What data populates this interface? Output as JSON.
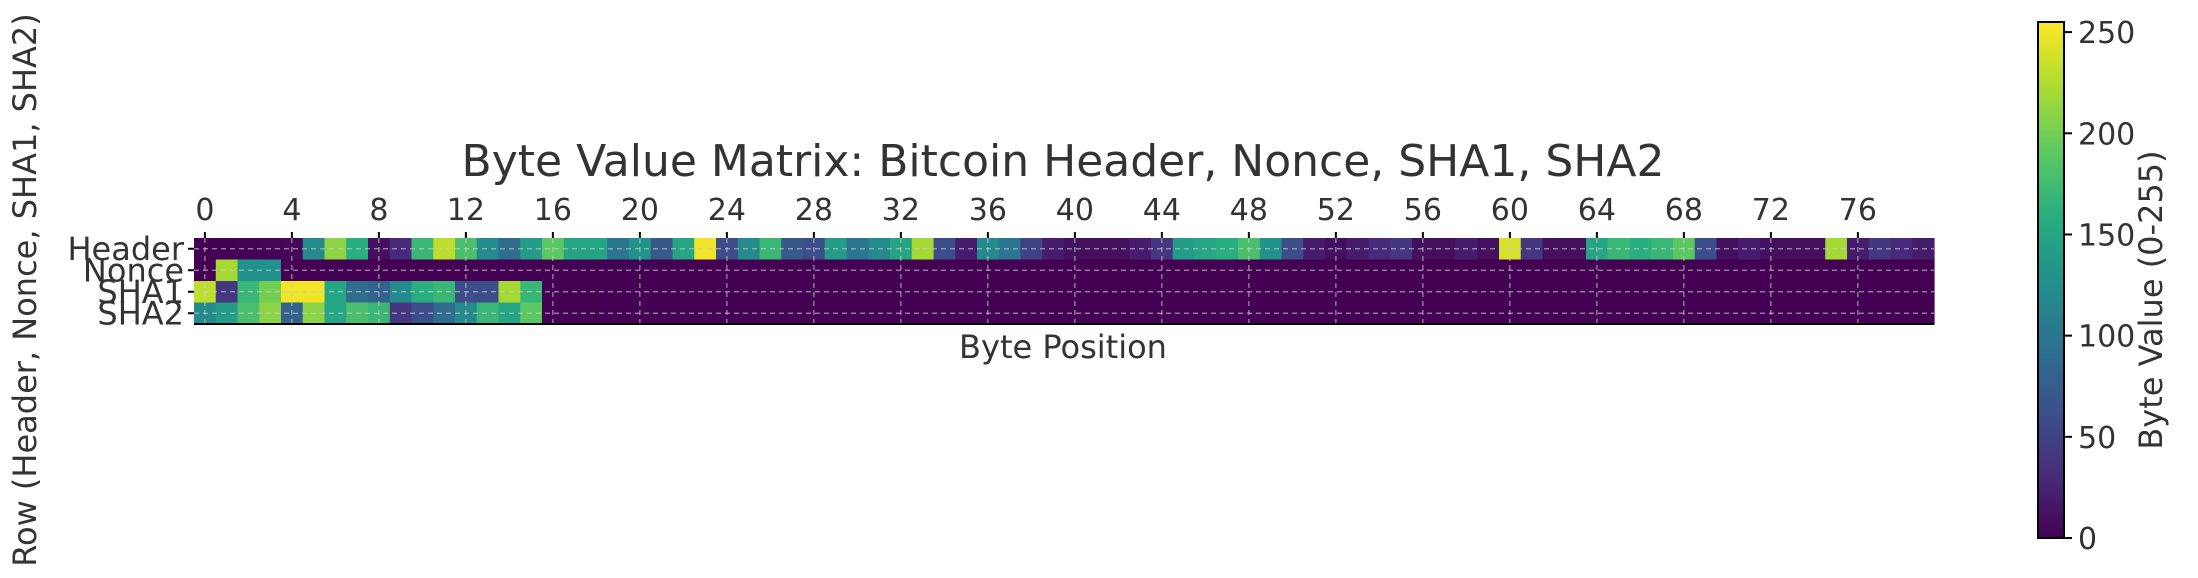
{
  "chart_data": {
    "type": "heatmap",
    "title": "Byte Value Matrix: Bitcoin Header, Nonce, SHA1, SHA2",
    "xlabel": "Byte Position",
    "ylabel": "Row (Header, Nonce, SHA1, SHA2)",
    "rows": [
      "Header",
      "Nonce",
      "SHA1",
      "SHA2"
    ],
    "x_ticks": [
      0,
      4,
      8,
      12,
      16,
      20,
      24,
      28,
      32,
      36,
      40,
      44,
      48,
      52,
      56,
      60,
      64,
      68,
      72,
      76
    ],
    "x_range": [
      0,
      80
    ],
    "colorbar": {
      "label": "Byte Value (0-255)",
      "range": [
        0,
        255
      ],
      "ticks": [
        0,
        50,
        100,
        150,
        200,
        250
      ],
      "colormap": "viridis"
    },
    "grid": true,
    "grid_color": "#cccccc",
    "values": [
      [
        0,
        1,
        2,
        3,
        4,
        120,
        210,
        160,
        10,
        30,
        170,
        230,
        180,
        120,
        90,
        140,
        190,
        150,
        150,
        100,
        130,
        70,
        150,
        250,
        60,
        120,
        170,
        70,
        60,
        140,
        100,
        120,
        150,
        220,
        60,
        20,
        120,
        100,
        50,
        20,
        10,
        10,
        10,
        20,
        40,
        140,
        150,
        160,
        180,
        130,
        60,
        20,
        10,
        20,
        30,
        40,
        10,
        10,
        20,
        10,
        240,
        40,
        10,
        10,
        150,
        170,
        160,
        170,
        190,
        60,
        10,
        20,
        10,
        10,
        10,
        220,
        20,
        40,
        30,
        20
      ],
      [
        0,
        220,
        130,
        130,
        0,
        0,
        0,
        0,
        0,
        0,
        0,
        0,
        0,
        0,
        0,
        0,
        0,
        0,
        0,
        0,
        0,
        0,
        0,
        0,
        0,
        0,
        0,
        0,
        0,
        0,
        0,
        0,
        0,
        0,
        0,
        0,
        0,
        0,
        0,
        0,
        0,
        0,
        0,
        0,
        0,
        0,
        0,
        0,
        0,
        0,
        0,
        0,
        0,
        0,
        0,
        0,
        0,
        0,
        0,
        0,
        0,
        0,
        0,
        0,
        0,
        0,
        0,
        0,
        0,
        0,
        0,
        0,
        0,
        0,
        0,
        0,
        0,
        0,
        0,
        0
      ],
      [
        230,
        40,
        170,
        200,
        250,
        250,
        150,
        90,
        80,
        120,
        160,
        170,
        60,
        60,
        220,
        170,
        0,
        0,
        0,
        0,
        0,
        0,
        0,
        0,
        0,
        0,
        0,
        0,
        0,
        0,
        0,
        0,
        0,
        0,
        0,
        0,
        0,
        0,
        0,
        0,
        0,
        0,
        0,
        0,
        0,
        0,
        0,
        0,
        0,
        0,
        0,
        0,
        0,
        0,
        0,
        0,
        0,
        0,
        0,
        0,
        0,
        0,
        0,
        0,
        0,
        0,
        0,
        0,
        0,
        0,
        0,
        0,
        0,
        0,
        0,
        0,
        0,
        0,
        0,
        0
      ],
      [
        120,
        140,
        180,
        210,
        80,
        210,
        150,
        180,
        170,
        40,
        60,
        90,
        120,
        170,
        150,
        190,
        0,
        0,
        0,
        0,
        0,
        0,
        0,
        0,
        0,
        0,
        0,
        0,
        0,
        0,
        0,
        0,
        0,
        0,
        0,
        0,
        0,
        0,
        0,
        0,
        0,
        0,
        0,
        0,
        0,
        0,
        0,
        0,
        0,
        0,
        0,
        0,
        0,
        0,
        0,
        0,
        0,
        0,
        0,
        0,
        0,
        0,
        0,
        0,
        0,
        0,
        0,
        0,
        0,
        0,
        0,
        0,
        0,
        0,
        0,
        0,
        0,
        0,
        0,
        0
      ]
    ]
  }
}
